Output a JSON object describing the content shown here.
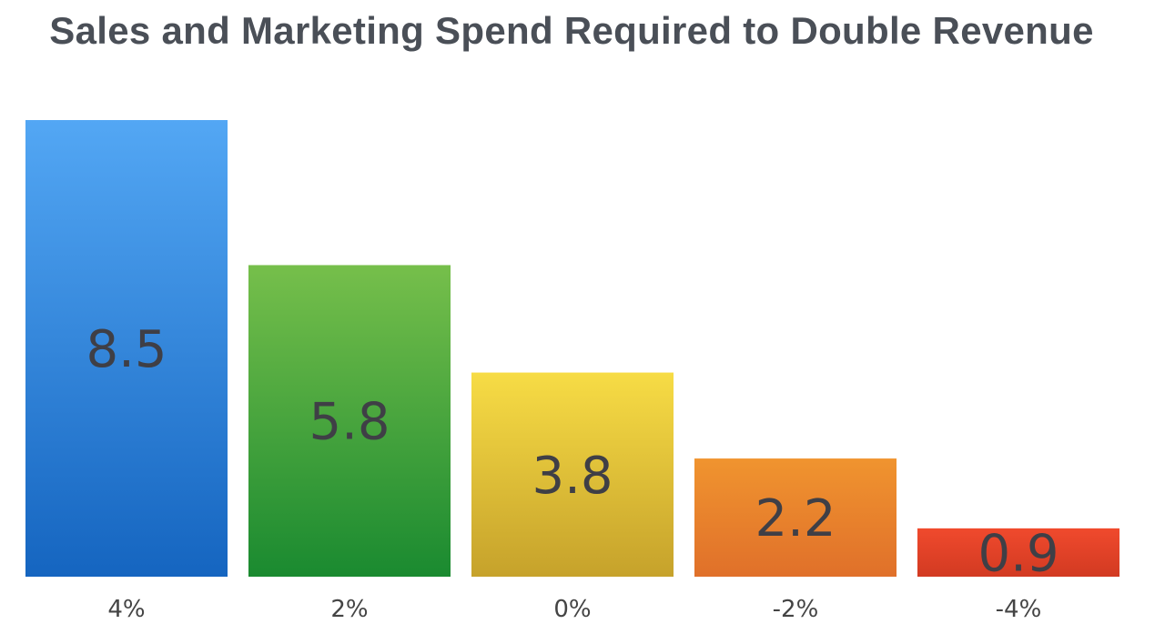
{
  "chart_data": {
    "type": "bar",
    "title": "Sales and Marketing Spend Required to Double Revenue",
    "xlabel": "",
    "ylabel": "",
    "categories": [
      "4%",
      "2%",
      "0%",
      "-2%",
      "-4%"
    ],
    "values": [
      8.5,
      5.8,
      3.8,
      2.2,
      0.9
    ],
    "value_labels": [
      "8.5",
      "5.8",
      "3.8",
      "2.2",
      "0.9"
    ],
    "ylim": [
      0,
      8.5
    ],
    "grid": false,
    "legend": "none",
    "bar_colors": [
      {
        "top": "#53a7f4",
        "bottom": "#1565c0"
      },
      {
        "top": "#76bf4b",
        "bottom": "#1a8a30"
      },
      {
        "top": "#f7dc45",
        "bottom": "#c6a22b"
      },
      {
        "top": "#f0942f",
        "bottom": "#e0702a"
      },
      {
        "top": "#f04a2d",
        "bottom": "#d23a22"
      }
    ]
  }
}
